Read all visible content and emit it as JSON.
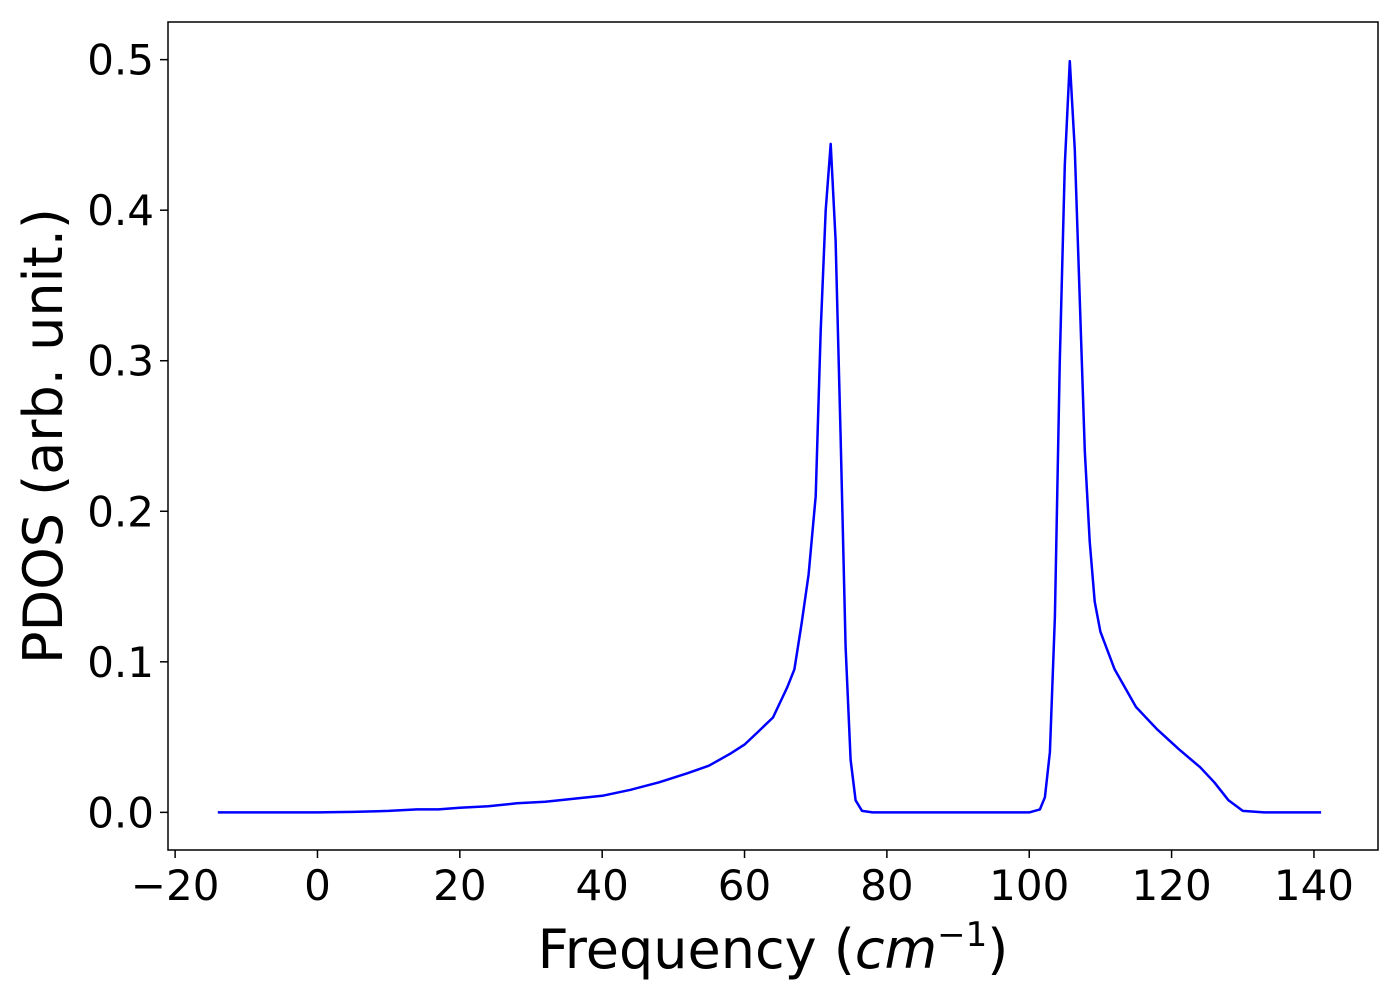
{
  "chart_data": {
    "type": "line",
    "xlabel": "Frequency (",
    "xlabel_unit": "cm",
    "xlabel_exp": "−1",
    "xlabel_close": ")",
    "ylabel": "PDOS (arb. unit.)",
    "xlim": [
      -21,
      149
    ],
    "ylim": [
      -0.025,
      0.525
    ],
    "xticks": [
      -20,
      0,
      20,
      40,
      60,
      80,
      100,
      120,
      140
    ],
    "xtick_labels": [
      "−20",
      "0",
      "20",
      "40",
      "60",
      "80",
      "100",
      "120",
      "140"
    ],
    "yticks": [
      0.0,
      0.1,
      0.2,
      0.3,
      0.4,
      0.5
    ],
    "ytick_labels": [
      "0.0",
      "0.1",
      "0.2",
      "0.3",
      "0.4",
      "0.5"
    ],
    "grid": false,
    "series": [
      {
        "color": "#0000ff",
        "x": [
          -14,
          0,
          5,
          10,
          14,
          17,
          20,
          24,
          28,
          32,
          36,
          40,
          44,
          48,
          52,
          55,
          58,
          60,
          62,
          64,
          66,
          67,
          68,
          69,
          70,
          70.7,
          71.4,
          72.1,
          72.8,
          73.5,
          74.2,
          74.9,
          75.6,
          76.5,
          78,
          85,
          95,
          100,
          101.5,
          102.2,
          102.9,
          103.6,
          104.3,
          105.0,
          105.7,
          106.4,
          107.1,
          107.8,
          108.5,
          109.2,
          110,
          112,
          115,
          118,
          121,
          124,
          126,
          128,
          130,
          133,
          141
        ],
        "y": [
          0,
          0,
          0.0003,
          0.001,
          0.002,
          0.002,
          0.003,
          0.004,
          0.006,
          0.007,
          0.009,
          0.011,
          0.015,
          0.02,
          0.026,
          0.031,
          0.039,
          0.045,
          0.054,
          0.063,
          0.083,
          0.095,
          0.125,
          0.158,
          0.21,
          0.32,
          0.4,
          0.444,
          0.38,
          0.25,
          0.11,
          0.035,
          0.008,
          0.001,
          0,
          0,
          0,
          0,
          0.002,
          0.01,
          0.04,
          0.13,
          0.3,
          0.43,
          0.499,
          0.44,
          0.34,
          0.24,
          0.18,
          0.14,
          0.12,
          0.095,
          0.07,
          0.055,
          0.042,
          0.03,
          0.02,
          0.008,
          0.001,
          0,
          0
        ]
      }
    ]
  }
}
